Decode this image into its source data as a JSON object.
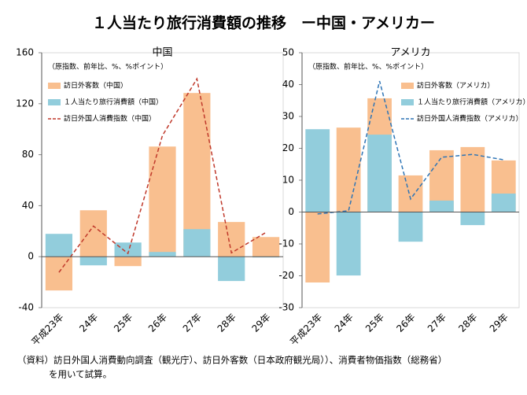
{
  "title": "１人当たり旅行消費額の推移　ー中国・アメリカー",
  "source": [
    "（資料）訪日外国人消費動向調査（観光庁）、訪日外客数（日本政府観光局））、消費者物価指数（総務省）",
    "を用いて試算。"
  ],
  "chart_data": [
    {
      "type": "bar",
      "title": "中国",
      "subtitle": "（原指数、前年比、%、%ポイント）",
      "categories": [
        "平成23年",
        "24年",
        "25年",
        "26年",
        "27年",
        "28年",
        "29年"
      ],
      "ylim": [
        -40,
        160
      ],
      "yticks": [
        -40,
        0,
        40,
        80,
        120,
        160
      ],
      "legend": "upper left",
      "series": [
        {
          "name": "訪日外客数（中国）",
          "type": "bar",
          "color": "#f9bf8f",
          "values": [
            -26.5,
            36.4,
            -7.4,
            86.4,
            128.4,
            27.2,
            15.4
          ]
        },
        {
          "name": "１人当たり旅行消費額（中国）",
          "type": "bar",
          "color": "#92cddc",
          "values": [
            17.9,
            -6.8,
            11.1,
            3.7,
            21.6,
            -19.1,
            -0.6
          ]
        },
        {
          "name": "訪日外国人消費指数（中国）",
          "type": "line",
          "line_style": "dashed",
          "color": "#c0392b",
          "values": [
            -12.3,
            24,
            2.5,
            95,
            139.5,
            3,
            19
          ]
        }
      ]
    },
    {
      "type": "bar",
      "title": "アメリカ",
      "subtitle": "（原指数、前年比、%、%ポイント）",
      "categories": [
        "平成23年",
        "24年",
        "25年",
        "26年",
        "27年",
        "28年",
        "29年"
      ],
      "ylim": [
        -30,
        50
      ],
      "yticks": [
        -30,
        -20,
        -10,
        0,
        10,
        20,
        30,
        40,
        50
      ],
      "legend": "upper right",
      "series": [
        {
          "name": "訪日外客数（アメリカ）",
          "type": "bar",
          "color": "#f9bf8f",
          "values": [
            -22.1,
            26.5,
            35.7,
            11.5,
            19.4,
            20.4,
            16.2
          ]
        },
        {
          "name": "１人当たり旅行消費額（アメリカ）",
          "type": "bar",
          "color": "#92cddc",
          "values": [
            26,
            -19.9,
            24.3,
            -9.3,
            3.6,
            -4.1,
            5.8
          ]
        },
        {
          "name": "訪日外国人消費指数（アメリカ）",
          "type": "line",
          "line_style": "dashed",
          "color": "#2e75b6",
          "values": [
            -0.6,
            0.4,
            41.1,
            4.1,
            17.2,
            18.1,
            16.4
          ]
        }
      ]
    }
  ]
}
